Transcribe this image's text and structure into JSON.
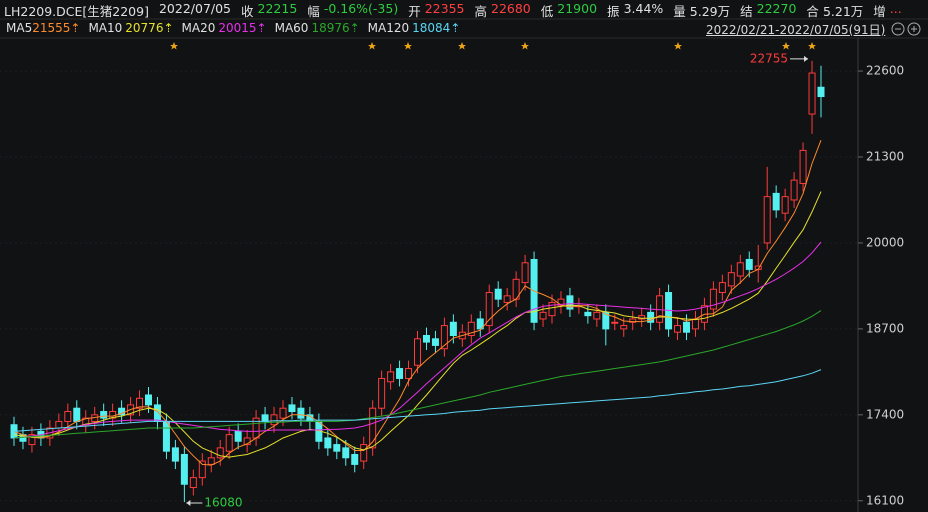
{
  "header": {
    "symbol": "LH2209.DCE[生猪2209]",
    "date": "2022/07/05",
    "quotes": [
      {
        "label": "收",
        "value": "22215",
        "color": "#2ecc40"
      },
      {
        "label": "幅",
        "value": "-0.16%(-35)",
        "color": "#2ecc40"
      },
      {
        "label": "开",
        "value": "22355",
        "color": "#ff4040"
      },
      {
        "label": "高",
        "value": "22680",
        "color": "#ff4040"
      },
      {
        "label": "低",
        "value": "21900",
        "color": "#2ecc40"
      },
      {
        "label": "振",
        "value": "3.44%",
        "color": "#e0e0e0"
      },
      {
        "label": "量",
        "value": "5.29万",
        "color": "#e0e0e0"
      },
      {
        "label": "结",
        "value": "22270",
        "color": "#2ecc40"
      },
      {
        "label": "合",
        "value": "5.21万",
        "color": "#e0e0e0"
      },
      {
        "label": "增",
        "value": "...",
        "color": "#ff4040"
      }
    ],
    "range": "2022/02/21-2022/07/05(91日)"
  },
  "chart_data": {
    "type": "candlestick",
    "up_color": "#ff3b3b",
    "down_color": "#54f0f0",
    "grid": true,
    "mark_extremes": true,
    "ylim": [
      15930,
      23070
    ],
    "yticks": [
      16100,
      17400,
      18700,
      20000,
      21300,
      22600
    ],
    "open": [
      17250,
      17100,
      16950,
      17150,
      17050,
      17200,
      17300,
      17500,
      17250,
      17300,
      17450,
      17350,
      17500,
      17400,
      17500,
      17700,
      17550,
      17300,
      16900,
      16800,
      16300,
      16450,
      16650,
      16750,
      16850,
      17150,
      16950,
      17050,
      17400,
      17250,
      17350,
      17550,
      17500,
      17400,
      17300,
      17050,
      16950,
      16900,
      16800,
      16700,
      16900,
      17500,
      17900,
      18100,
      17950,
      18150,
      18600,
      18550,
      18400,
      18800,
      18550,
      18600,
      18850,
      18750,
      19300,
      19100,
      19150,
      19400,
      19750,
      18850,
      18900,
      19050,
      19200,
      19050,
      18950,
      18850,
      18950,
      18800,
      18700,
      18800,
      18850,
      18950,
      18800,
      19250,
      18650,
      18800,
      18700,
      18800,
      19000,
      19250,
      19350,
      19500,
      19750,
      19600,
      20000,
      20750,
      20450,
      20650,
      20900,
      21950,
      22355
    ],
    "high": [
      17370,
      17220,
      17220,
      17270,
      17320,
      17420,
      17570,
      17620,
      17470,
      17520,
      17570,
      17570,
      17620,
      17670,
      17770,
      17820,
      17670,
      17420,
      17020,
      16920,
      16570,
      16820,
      16870,
      17020,
      17220,
      17270,
      17170,
      17470,
      17520,
      17520,
      17620,
      17670,
      17620,
      17520,
      17420,
      17170,
      17070,
      17020,
      16920,
      17070,
      17620,
      18070,
      18170,
      18220,
      18220,
      18670,
      18720,
      18670,
      18870,
      18920,
      18770,
      18920,
      18970,
      19370,
      19420,
      19320,
      19570,
      19820,
      19870,
      19070,
      19220,
      19270,
      19320,
      19170,
      19070,
      19070,
      19070,
      18920,
      18870,
      18970,
      19020,
      19070,
      19320,
      19370,
      18870,
      18920,
      18970,
      19170,
      19420,
      19520,
      19670,
      19820,
      19870,
      19970,
      21150,
      20870,
      20820,
      21070,
      21520,
      22755,
      22680
    ],
    "low": [
      16930,
      16880,
      16830,
      16930,
      16930,
      17080,
      17180,
      17180,
      17130,
      17180,
      17230,
      17230,
      17280,
      17280,
      17380,
      17430,
      17180,
      16730,
      16580,
      16080,
      16180,
      16330,
      16530,
      16630,
      16730,
      16880,
      16830,
      16930,
      17180,
      17130,
      17230,
      17330,
      17230,
      17180,
      16880,
      16780,
      16730,
      16630,
      16530,
      16580,
      16780,
      17380,
      17780,
      17830,
      17830,
      18030,
      18380,
      18330,
      18280,
      18480,
      18430,
      18480,
      18580,
      18630,
      19030,
      18980,
      19030,
      19280,
      18680,
      18730,
      18780,
      18930,
      18880,
      18930,
      18780,
      18730,
      18450,
      18680,
      18580,
      18680,
      18730,
      18680,
      18680,
      18580,
      18530,
      18530,
      18580,
      18680,
      18880,
      19130,
      19230,
      19380,
      19480,
      19400,
      19900,
      20380,
      20330,
      20530,
      20780,
      21650,
      21900
    ],
    "close": [
      17050,
      17000,
      17100,
      17050,
      17200,
      17300,
      17450,
      17300,
      17350,
      17400,
      17350,
      17450,
      17400,
      17550,
      17650,
      17550,
      17300,
      16850,
      16700,
      16350,
      16450,
      16700,
      16750,
      16900,
      17100,
      17000,
      17050,
      17350,
      17300,
      17400,
      17500,
      17450,
      17350,
      17300,
      17000,
      16900,
      16850,
      16750,
      16650,
      16950,
      17500,
      17950,
      18050,
      17950,
      18100,
      18550,
      18500,
      18450,
      18750,
      18600,
      18650,
      18800,
      18700,
      19250,
      19150,
      19200,
      19450,
      19700,
      18800,
      18950,
      19100,
      19150,
      19000,
      19050,
      18900,
      18950,
      18700,
      18800,
      18750,
      18850,
      18900,
      18800,
      19200,
      18700,
      18750,
      18650,
      18850,
      19050,
      19300,
      19400,
      19550,
      19700,
      19600,
      19650,
      20700,
      20500,
      20700,
      20950,
      21400,
      22570,
      22215
    ],
    "series": [
      {
        "name": "MA5",
        "last_label": "21555⇡",
        "color": "#ff8a2a",
        "values": [
          17150,
          17100,
          17060,
          17050,
          17080,
          17140,
          17220,
          17300,
          17340,
          17360,
          17380,
          17380,
          17420,
          17480,
          17520,
          17520,
          17450,
          17300,
          17110,
          16920,
          16780,
          16650,
          16640,
          16700,
          16820,
          16910,
          16960,
          17050,
          17150,
          17230,
          17330,
          17400,
          17400,
          17380,
          17290,
          17190,
          17070,
          16960,
          16860,
          16860,
          16990,
          17200,
          17420,
          17640,
          17910,
          18100,
          18230,
          18340,
          18450,
          18560,
          18600,
          18640,
          18680,
          18840,
          18970,
          19080,
          19150,
          19350,
          19270,
          19220,
          19160,
          19060,
          19030,
          19050,
          19050,
          19010,
          18920,
          18880,
          18820,
          18810,
          18810,
          18830,
          18900,
          18880,
          18870,
          18820,
          18850,
          18920,
          18930,
          19030,
          19280,
          19400,
          19540,
          19600,
          19840,
          20030,
          20230,
          20450,
          20750,
          21200,
          21555
        ]
      },
      {
        "name": "MA10",
        "last_label": "20776⇡",
        "color": "#e6e22a",
        "values": [
          17100,
          17080,
          17060,
          17070,
          17090,
          17120,
          17170,
          17220,
          17260,
          17280,
          17320,
          17360,
          17380,
          17420,
          17470,
          17500,
          17480,
          17400,
          17280,
          17140,
          17000,
          16900,
          16840,
          16780,
          16760,
          16780,
          16800,
          16850,
          16900,
          16970,
          17050,
          17100,
          17150,
          17180,
          17160,
          17120,
          17060,
          16980,
          16900,
          16870,
          16920,
          17020,
          17150,
          17270,
          17390,
          17550,
          17700,
          17860,
          18020,
          18180,
          18300,
          18380,
          18470,
          18560,
          18660,
          18750,
          18860,
          18950,
          18960,
          19000,
          19020,
          19040,
          19060,
          19050,
          19000,
          18980,
          18960,
          18940,
          18900,
          18880,
          18860,
          18860,
          18880,
          18880,
          18860,
          18850,
          18840,
          18860,
          18900,
          18950,
          19010,
          19080,
          19150,
          19240,
          19420,
          19620,
          19810,
          20010,
          20200,
          20470,
          20776
        ]
      },
      {
        "name": "MA20",
        "last_label": "20015⇡",
        "color": "#e830e8",
        "values": [
          17050,
          17060,
          17080,
          17100,
          17130,
          17160,
          17190,
          17220,
          17250,
          17270,
          17290,
          17300,
          17310,
          17320,
          17320,
          17320,
          17320,
          17300,
          17280,
          17260,
          17240,
          17220,
          17200,
          17180,
          17170,
          17160,
          17150,
          17150,
          17160,
          17170,
          17170,
          17170,
          17170,
          17170,
          17170,
          17180,
          17180,
          17190,
          17200,
          17230,
          17270,
          17320,
          17400,
          17500,
          17620,
          17740,
          17870,
          17990,
          18110,
          18230,
          18350,
          18460,
          18560,
          18640,
          18720,
          18800,
          18880,
          18950,
          19000,
          19040,
          19060,
          19070,
          19080,
          19080,
          19070,
          19060,
          19050,
          19040,
          19030,
          19020,
          19010,
          19000,
          18990,
          18980,
          18970,
          18980,
          19000,
          19030,
          19060,
          19100,
          19150,
          19200,
          19250,
          19310,
          19380,
          19450,
          19530,
          19620,
          19720,
          19850,
          20015
        ]
      },
      {
        "name": "MA60",
        "last_label": "18976⇡",
        "color": "#2aa82a",
        "values": [
          17050,
          17060,
          17070,
          17080,
          17090,
          17100,
          17110,
          17120,
          17130,
          17140,
          17150,
          17160,
          17170,
          17180,
          17190,
          17200,
          17200,
          17200,
          17200,
          17200,
          17200,
          17210,
          17220,
          17230,
          17240,
          17250,
          17260,
          17270,
          17280,
          17290,
          17290,
          17300,
          17300,
          17300,
          17300,
          17300,
          17300,
          17310,
          17320,
          17340,
          17360,
          17380,
          17400,
          17430,
          17460,
          17490,
          17520,
          17550,
          17580,
          17610,
          17640,
          17670,
          17700,
          17740,
          17770,
          17800,
          17830,
          17860,
          17890,
          17920,
          17950,
          17980,
          18000,
          18020,
          18040,
          18060,
          18080,
          18100,
          18120,
          18140,
          18160,
          18180,
          18200,
          18230,
          18260,
          18290,
          18320,
          18350,
          18380,
          18420,
          18460,
          18500,
          18540,
          18580,
          18620,
          18660,
          18710,
          18760,
          18820,
          18890,
          18976
        ]
      },
      {
        "name": "MA120",
        "last_label": "18084⇡",
        "color": "#5ad6f5",
        "values": [
          17150,
          17160,
          17170,
          17180,
          17190,
          17200,
          17210,
          17220,
          17230,
          17240,
          17250,
          17260,
          17270,
          17280,
          17290,
          17300,
          17300,
          17300,
          17300,
          17300,
          17300,
          17300,
          17300,
          17300,
          17300,
          17300,
          17300,
          17300,
          17300,
          17310,
          17310,
          17310,
          17320,
          17320,
          17320,
          17320,
          17320,
          17320,
          17320,
          17330,
          17340,
          17350,
          17360,
          17370,
          17380,
          17390,
          17400,
          17410,
          17420,
          17440,
          17450,
          17460,
          17470,
          17490,
          17500,
          17510,
          17520,
          17530,
          17540,
          17550,
          17560,
          17570,
          17580,
          17590,
          17600,
          17610,
          17620,
          17630,
          17640,
          17650,
          17660,
          17670,
          17690,
          17700,
          17720,
          17730,
          17750,
          17760,
          17780,
          17790,
          17810,
          17830,
          17840,
          17860,
          17880,
          17900,
          17930,
          17960,
          17990,
          18030,
          18084
        ]
      }
    ]
  }
}
